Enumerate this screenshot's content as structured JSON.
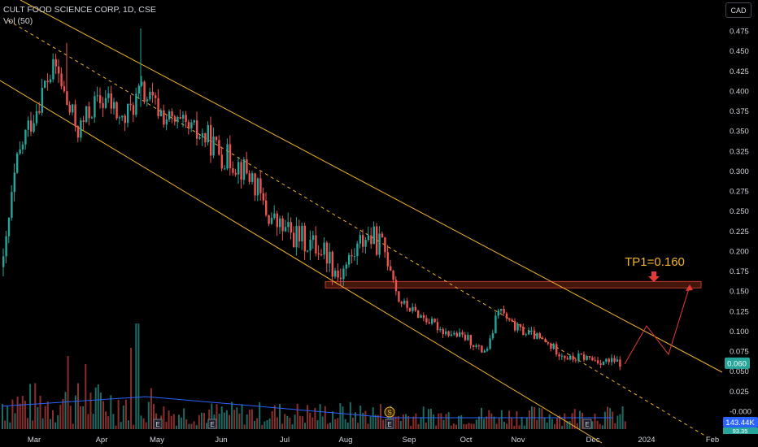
{
  "header": {
    "title": "CULT FOOD SCIENCE CORP, 1D, CSE",
    "volume_label": "Vol (50)"
  },
  "currency_button": "CAD",
  "chart_data": {
    "type": "candlestick",
    "title": "CULT FOOD SCIENCE CORP, 1D, CSE",
    "price_axis": {
      "ticks": [
        "0.475",
        "0.450",
        "0.425",
        "0.400",
        "0.375",
        "0.350",
        "0.325",
        "0.300",
        "0.275",
        "0.250",
        "0.225",
        "0.200",
        "0.175",
        "0.150",
        "0.125",
        "0.100",
        "0.075",
        "0.050",
        "0.025",
        "-0.000"
      ],
      "range": [
        -0.01,
        0.49
      ]
    },
    "time_axis": {
      "ticks": [
        "Mar",
        "Apr",
        "May",
        "Jun",
        "Jul",
        "Aug",
        "Sep",
        "Oct",
        "Nov",
        "Dec",
        "2024",
        "Feb"
      ]
    },
    "last_price_badge": "0.060",
    "volume_badge": "143.44K",
    "volume_badge2": "93.35",
    "annotation_target": "TP1=0.160",
    "resistance_zone": [
      0.154,
      0.162
    ],
    "colors": {
      "up": "#26a69a",
      "down": "#ef5350",
      "channel": "#f0b429",
      "target": "#e53935",
      "volume_ma": "#2962ff"
    },
    "earnings_markers": [
      "E",
      "E",
      "E",
      "E"
    ],
    "dividend_marker": "S",
    "candles_approx": [
      {
        "m": "Mar",
        "o": 0.18,
        "c": 0.24
      },
      {
        "m": "Mar",
        "o": 0.24,
        "c": 0.32
      },
      {
        "m": "Mar",
        "o": 0.32,
        "c": 0.36
      },
      {
        "m": "Mar",
        "o": 0.36,
        "c": 0.41
      },
      {
        "m": "Mar",
        "o": 0.41,
        "c": 0.44
      },
      {
        "m": "Apr",
        "o": 0.44,
        "c": 0.38
      },
      {
        "m": "Apr",
        "o": 0.38,
        "c": 0.36
      },
      {
        "m": "Apr",
        "o": 0.36,
        "c": 0.4
      },
      {
        "m": "May",
        "o": 0.4,
        "c": 0.37
      },
      {
        "m": "May",
        "o": 0.37,
        "c": 0.35
      },
      {
        "m": "Jun",
        "o": 0.35,
        "c": 0.33
      },
      {
        "m": "Jun",
        "o": 0.33,
        "c": 0.3
      },
      {
        "m": "Jul",
        "o": 0.3,
        "c": 0.25
      },
      {
        "m": "Jul",
        "o": 0.25,
        "c": 0.21
      },
      {
        "m": "Aug",
        "o": 0.21,
        "c": 0.17
      },
      {
        "m": "Aug",
        "o": 0.17,
        "c": 0.22
      },
      {
        "m": "Aug",
        "o": 0.22,
        "c": 0.16
      },
      {
        "m": "Sep",
        "o": 0.16,
        "c": 0.12
      },
      {
        "m": "Sep",
        "o": 0.12,
        "c": 0.1
      },
      {
        "m": "Sep",
        "o": 0.1,
        "c": 0.08
      },
      {
        "m": "Oct",
        "o": 0.08,
        "c": 0.13
      },
      {
        "m": "Oct",
        "o": 0.13,
        "c": 0.1
      },
      {
        "m": "Nov",
        "o": 0.1,
        "c": 0.08
      },
      {
        "m": "Nov",
        "o": 0.08,
        "c": 0.06
      },
      {
        "m": "Dec",
        "o": 0.06,
        "c": 0.07
      },
      {
        "m": "Dec",
        "o": 0.07,
        "c": 0.06
      }
    ]
  }
}
